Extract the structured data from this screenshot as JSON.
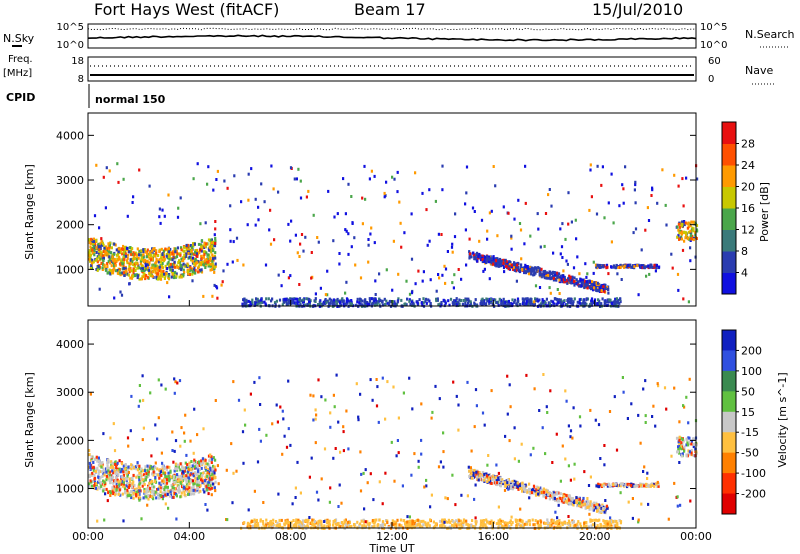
{
  "header": {
    "station": "Fort Hays West (fitACF)",
    "beam": "Beam 17",
    "date": "15/Jul/2010"
  },
  "panels": {
    "noise": {
      "left_label": "N.Sky",
      "right_label": "N.Search",
      "left_ticks": [
        "10^5",
        "10^0"
      ],
      "right_ticks": [
        "10^5",
        "10^0"
      ]
    },
    "freq": {
      "left_label_top": "Freq.",
      "left_label_unit": "[MHz]",
      "left_ticks": [
        "18",
        "8"
      ],
      "right_label": "Nave",
      "right_ticks": [
        "60",
        "0"
      ]
    },
    "cpid": {
      "label": "CPID",
      "mode": "normal 150"
    }
  },
  "chart_data": [
    {
      "type": "heatmap",
      "name": "power",
      "ylabel": "Slant Range [km]",
      "ylim": [
        180,
        4500
      ],
      "yticks": [
        1000,
        2000,
        3000,
        4000
      ],
      "xlim": [
        0,
        24
      ],
      "colorbar": {
        "label": "Power [dB]",
        "range": [
          0,
          32
        ],
        "ticks": [
          4,
          8,
          12,
          16,
          20,
          24,
          28
        ],
        "colors": [
          "#1010e0",
          "#2a3cb0",
          "#3a7a7a",
          "#4aa64a",
          "#c8c800",
          "#ff9a00",
          "#ff5000",
          "#e81010"
        ]
      },
      "regions": [
        {
          "t0": 0.0,
          "t1": 5.0,
          "r0": 900,
          "r1": 1900,
          "level": "high"
        },
        {
          "t0": 15.0,
          "t1": 20.5,
          "r0": 500,
          "r1": 1400,
          "level": "mid"
        },
        {
          "t0": 0.0,
          "t1": 24.0,
          "r0": 180,
          "r1": 400,
          "level": "low"
        }
      ]
    },
    {
      "type": "heatmap",
      "name": "velocity",
      "xlabel": "Time UT",
      "ylabel": "Slant Range [km]",
      "ylim": [
        180,
        4500
      ],
      "yticks": [
        1000,
        2000,
        3000,
        4000
      ],
      "xlim": [
        0,
        24
      ],
      "xticks": [
        "00:00",
        "04:00",
        "08:00",
        "12:00",
        "16:00",
        "20:00",
        "00:00"
      ],
      "colorbar": {
        "label": "Velocity [m s^-1]",
        "ticks": [
          "200",
          "100",
          "50",
          "15",
          "-15",
          "-50",
          "-100",
          "-200"
        ],
        "colors": [
          "#1020c0",
          "#3050e0",
          "#3a8a50",
          "#60c040",
          "#c8c8c8",
          "#ffc040",
          "#ff8000",
          "#ff3000",
          "#e00000"
        ]
      }
    }
  ]
}
